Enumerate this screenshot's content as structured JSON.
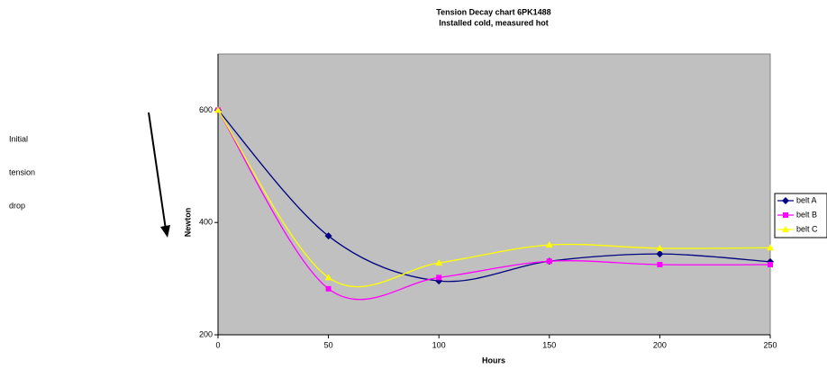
{
  "chart_data": {
    "type": "line",
    "title": "Tension Decay chart  6PK1488",
    "subtitle": "Installed cold, measured hot",
    "x_label": "Hours",
    "y_label": "Newton",
    "annotation": [
      "Initial",
      "tension",
      "drop"
    ],
    "x": [
      0,
      50,
      100,
      150,
      200,
      250
    ],
    "xlim": [
      0,
      250
    ],
    "xticks": [
      0,
      50,
      100,
      150,
      200,
      250
    ],
    "ylim": [
      200,
      700
    ],
    "yticks": [
      200,
      400,
      600
    ],
    "legend": "right",
    "series": [
      {
        "name": "belt A",
        "color": "#000080",
        "marker": "diamond",
        "values": [
          600,
          376,
          296,
          331,
          344,
          330
        ]
      },
      {
        "name": "belt B",
        "color": "#ff00ff",
        "marker": "square",
        "values": [
          600,
          282,
          302,
          331,
          325,
          325
        ]
      },
      {
        "name": "belt C",
        "color": "#ffff00",
        "marker": "triangle",
        "values": [
          600,
          302,
          328,
          360,
          354,
          355
        ]
      }
    ]
  }
}
